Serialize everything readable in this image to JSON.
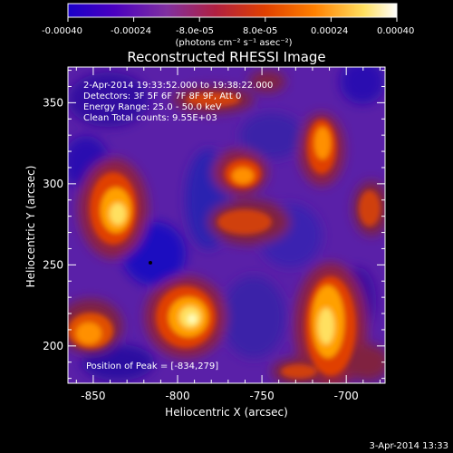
{
  "colorbar": {
    "tick_labels": [
      "-0.00040",
      "-0.00024",
      "-8.0e-05",
      "8.0e-05",
      "0.00024",
      "0.00040"
    ],
    "units_label": "(photons cm⁻² s⁻¹ asec⁻²)",
    "range": [
      -0.0004,
      0.0004
    ],
    "colormap_stops": [
      "#1a00c8",
      "#4a00c0",
      "#8030a0",
      "#a03060",
      "#e04000",
      "#ff8000",
      "#ffe060",
      "#ffffff"
    ]
  },
  "image": {
    "title": "Reconstructed RHESSI Image",
    "info_lines": [
      "2-Apr-2014 19:33:52.000 to 19:38:22.000",
      "Detectors: 3F 5F 6F 7F 8F 9F, Att 0",
      "Energy Range: 25.0 - 50.0 keV",
      "Clean    Total counts: 9.55E+03"
    ],
    "peak_label": "Position of Peak = [-834,279]",
    "peak_position": [
      -834,
      279
    ],
    "xlabel": "Heliocentric X (arcsec)",
    "ylabel": "Heliocentric Y (arcsec)",
    "x_ticks": [
      "-850",
      "-800",
      "-750",
      "-700"
    ],
    "y_ticks": [
      "200",
      "250",
      "300",
      "350"
    ],
    "x_tick_values": [
      -850,
      -800,
      -750,
      -700
    ],
    "y_tick_values": [
      200,
      250,
      300,
      350
    ],
    "xlim": [
      -865,
      -677
    ],
    "ylim": [
      177,
      372
    ]
  },
  "footer": {
    "timestamp": "3-Apr-2014 13:33"
  }
}
